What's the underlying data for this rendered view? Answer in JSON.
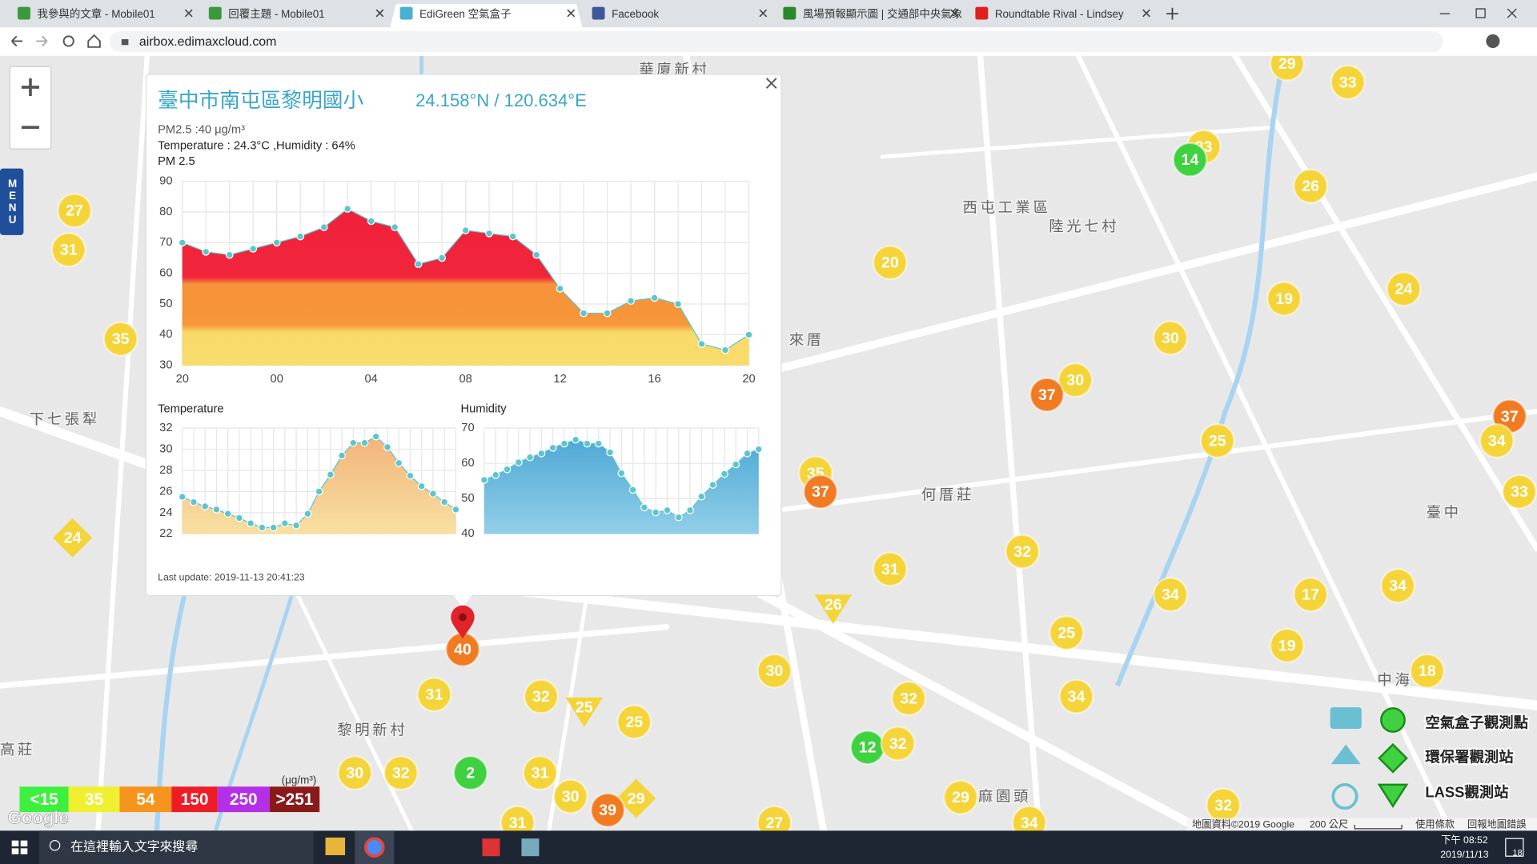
{
  "browser": {
    "tabs": [
      "我參與的文章 - Mobile01",
      "回覆主題 - Mobile01",
      "EdiGreen 空氣盒子",
      "Facebook",
      "風場預報顯示圖 | 交通部中央氣象",
      "Roundtable Rival - Lindsey"
    ],
    "address": "airbox.edimaxcloud.com"
  },
  "menu": "MENU",
  "popup": {
    "title": "臺中市南屯區黎明國小",
    "coords": "24.158°N / 120.634°E",
    "pm_line": "PM2.5 :40 μg/m³",
    "weather_line": "Temperature : 24.3°C ,Humidity : 64%",
    "pm_chart": {
      "type": "area",
      "title": "PM 2.5",
      "x": [
        20,
        21,
        22,
        23,
        24,
        25,
        26,
        27,
        28,
        29,
        30,
        31,
        32,
        33,
        34,
        35,
        36,
        37,
        38,
        39,
        40,
        41,
        42,
        43,
        44
      ],
      "values": [
        70,
        67,
        66,
        68,
        70,
        72,
        75,
        81,
        77,
        75,
        63,
        65,
        74,
        73,
        72,
        66,
        55,
        47,
        47,
        51,
        52,
        50,
        37,
        35,
        40
      ],
      "xlim": [
        20,
        44
      ],
      "xticks": [
        20,
        {
          "value": 24,
          "label": "00"
        },
        {
          "value": 28,
          "label": "04"
        },
        {
          "value": 32,
          "label": "08"
        },
        {
          "value": 36,
          "label": "12"
        },
        {
          "value": 40,
          "label": "16"
        },
        {
          "value": 44,
          "label": "20"
        }
      ],
      "ylim": [
        30,
        90
      ],
      "yticks": [
        30,
        40,
        50,
        60,
        70,
        80,
        90
      ],
      "color": "#5cc6cf",
      "grid": true
    },
    "temperature_chart": {
      "type": "area",
      "title": "Temperature",
      "values": [
        25.5,
        25,
        24.6,
        24.3,
        23.9,
        23.5,
        23,
        22.6,
        22.6,
        23,
        22.8,
        23.9,
        26,
        27.6,
        29.4,
        30.6,
        30.6,
        31.2,
        30.2,
        28.7,
        27.5,
        26.5,
        25.8,
        25,
        24.3
      ],
      "ylim": [
        22,
        32
      ],
      "yticks": [
        22,
        24,
        26,
        28,
        30,
        32
      ],
      "color": "#5cc6cf",
      "grid": true
    },
    "humidity_chart": {
      "type": "area",
      "title": "Humidity",
      "values": [
        55.3,
        56.7,
        58.3,
        60.3,
        61.7,
        62.8,
        64.4,
        65.6,
        66.7,
        65.6,
        65.6,
        63.1,
        57.2,
        52.5,
        47.5,
        46.1,
        46.7,
        44.7,
        46.7,
        50.6,
        53.9,
        57,
        59.7,
        62.8,
        64
      ],
      "ylim": [
        40,
        70
      ],
      "yticks": [
        40,
        50,
        60,
        70
      ],
      "color": "#5cc6cf",
      "grid": true
    },
    "last_update": "Last update: 2019-11-13 20:41:23"
  },
  "map": {
    "labels": [
      "西屯工業區",
      "陸光七村",
      "何厝莊",
      "黎明新村",
      "下七張犁",
      "高莊",
      "臺中",
      "中海",
      "麻園頭",
      "來厝",
      "華廈新村"
    ],
    "markers": [
      {
        "value": 29,
        "color": "#f5d43a"
      },
      {
        "value": 33,
        "color": "#f5d43a"
      },
      {
        "value": 33,
        "color": "#f5d43a"
      },
      {
        "value": 14,
        "color": "#3fd13f"
      },
      {
        "value": 26,
        "color": "#f5d43a"
      },
      {
        "value": 27,
        "color": "#f5d43a"
      },
      {
        "value": 31,
        "color": "#f5d43a"
      },
      {
        "value": 20,
        "color": "#f5d43a"
      },
      {
        "value": 19,
        "color": "#f5d43a"
      },
      {
        "value": 24,
        "color": "#f5d43a"
      },
      {
        "value": 30,
        "color": "#f5d43a"
      },
      {
        "value": 35,
        "color": "#f5d43a"
      },
      {
        "value": 30,
        "color": "#f5d43a"
      },
      {
        "value": 37,
        "color": "#f07b22"
      },
      {
        "value": 37,
        "color": "#f07b22"
      },
      {
        "value": 34,
        "color": "#f5d43a"
      },
      {
        "value": 25,
        "color": "#f5d43a"
      },
      {
        "value": 35,
        "color": "#f5d43a"
      },
      {
        "value": 37,
        "color": "#f07b22"
      },
      {
        "value": 33,
        "color": "#f5d43a"
      },
      {
        "value": 24,
        "color": "#f5d43a"
      },
      {
        "value": 32,
        "color": "#f5d43a"
      },
      {
        "value": 31,
        "color": "#f5d43a"
      },
      {
        "value": 34,
        "color": "#f5d43a"
      },
      {
        "value": 17,
        "color": "#f5d43a"
      },
      {
        "value": 34,
        "color": "#f5d43a"
      },
      {
        "value": 26,
        "color": "#f5d43a"
      },
      {
        "value": 25,
        "color": "#f5d43a"
      },
      {
        "value": 19,
        "color": "#f5d43a"
      },
      {
        "value": 30,
        "color": "#f5d43a"
      },
      {
        "value": 18,
        "color": "#f5d43a"
      },
      {
        "value": 31,
        "color": "#f5d43a"
      },
      {
        "value": 32,
        "color": "#f5d43a"
      },
      {
        "value": 25,
        "color": "#f5d43a"
      },
      {
        "value": 25,
        "color": "#f5d43a"
      },
      {
        "value": 32,
        "color": "#f5d43a"
      },
      {
        "value": 34,
        "color": "#f5d43a"
      },
      {
        "value": 12,
        "color": "#3fd13f"
      },
      {
        "value": 32,
        "color": "#f5d43a"
      },
      {
        "value": 30,
        "color": "#f5d43a"
      },
      {
        "value": 32,
        "color": "#f5d43a"
      },
      {
        "value": 2,
        "color": "#3fd13f"
      },
      {
        "value": 31,
        "color": "#f5d43a"
      },
      {
        "value": 30,
        "color": "#f5d43a"
      },
      {
        "value": 29,
        "color": "#f5d43a"
      },
      {
        "value": 39,
        "color": "#f07b22"
      },
      {
        "value": 29,
        "color": "#f5d43a"
      },
      {
        "value": 32,
        "color": "#f5d43a"
      },
      {
        "value": 40,
        "color": "#f07b22"
      },
      {
        "value": 27,
        "color": "#f5d43a"
      },
      {
        "value": 34,
        "color": "#f5d43a"
      },
      {
        "value": 31,
        "color": "#f5d43a"
      }
    ],
    "legend": {
      "unit": "(μg/m³)",
      "items": [
        {
          "label": "<15",
          "color": "#3ef03e"
        },
        {
          "label": "35",
          "color": "#f0f030"
        },
        {
          "label": "54",
          "color": "#f7941d"
        },
        {
          "label": "150",
          "color": "#ee1c25"
        },
        {
          "label": "250",
          "color": "#b430e6"
        },
        {
          "label": ">251",
          "color": "#8a1a1a"
        }
      ]
    },
    "station_types": [
      "空氣盒子觀測點",
      "環保署觀測站",
      "LASS觀測站"
    ],
    "google_logo": "Google",
    "attribution": [
      "地圖資料©2019 Google",
      "200 公尺",
      "使用條款",
      "回報地圖錯誤"
    ]
  },
  "taskbar": {
    "search": "在這裡輸入文字來搜尋",
    "time": "下午 08:52",
    "date": "2019/11/13",
    "notifications": "18"
  }
}
